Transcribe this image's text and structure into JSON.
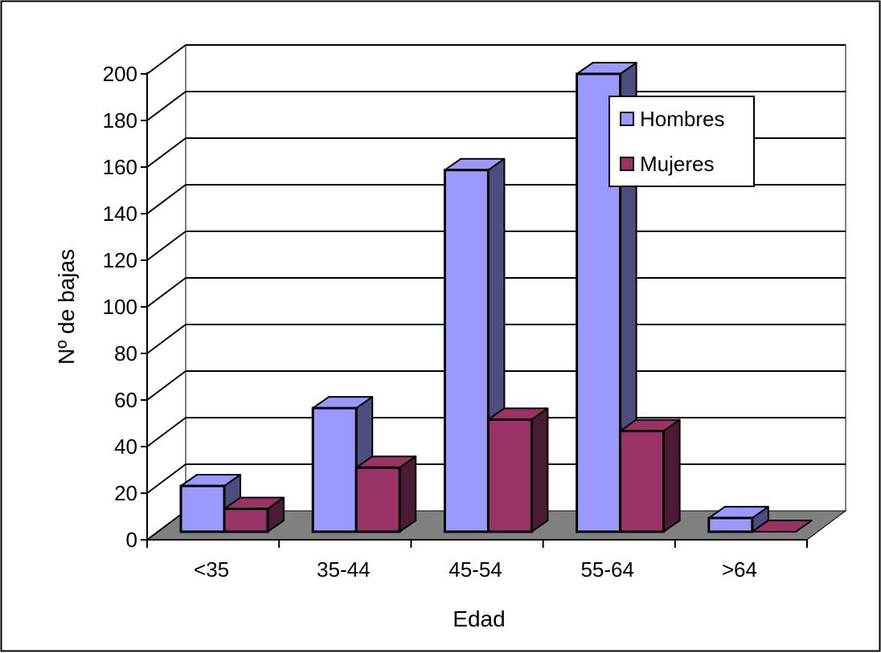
{
  "chart_data": {
    "type": "bar",
    "title": "",
    "xlabel": "Edad",
    "ylabel": "Nº de bajas",
    "categories": [
      "<35",
      "35-44",
      "45-54",
      "55-64",
      ">64"
    ],
    "series": [
      {
        "name": "Hombres",
        "values": [
          20,
          54,
          158,
          200,
          6
        ]
      },
      {
        "name": "Mujeres",
        "values": [
          10,
          28,
          49,
          44,
          0
        ]
      }
    ],
    "ylim": [
      0,
      200
    ],
    "yticks": [
      "0",
      "20",
      "40",
      "60",
      "80",
      "100",
      "120",
      "140",
      "160",
      "180",
      "200"
    ],
    "grid": true,
    "three_d": true,
    "legend_position": "top-right",
    "colors": {
      "hombres_front": "#9999ff",
      "hombres_side": "#4d4d80",
      "mujeres_front": "#993366",
      "mujeres_side": "#4c1a33",
      "floor": "#808080",
      "outline": "#000000"
    }
  }
}
